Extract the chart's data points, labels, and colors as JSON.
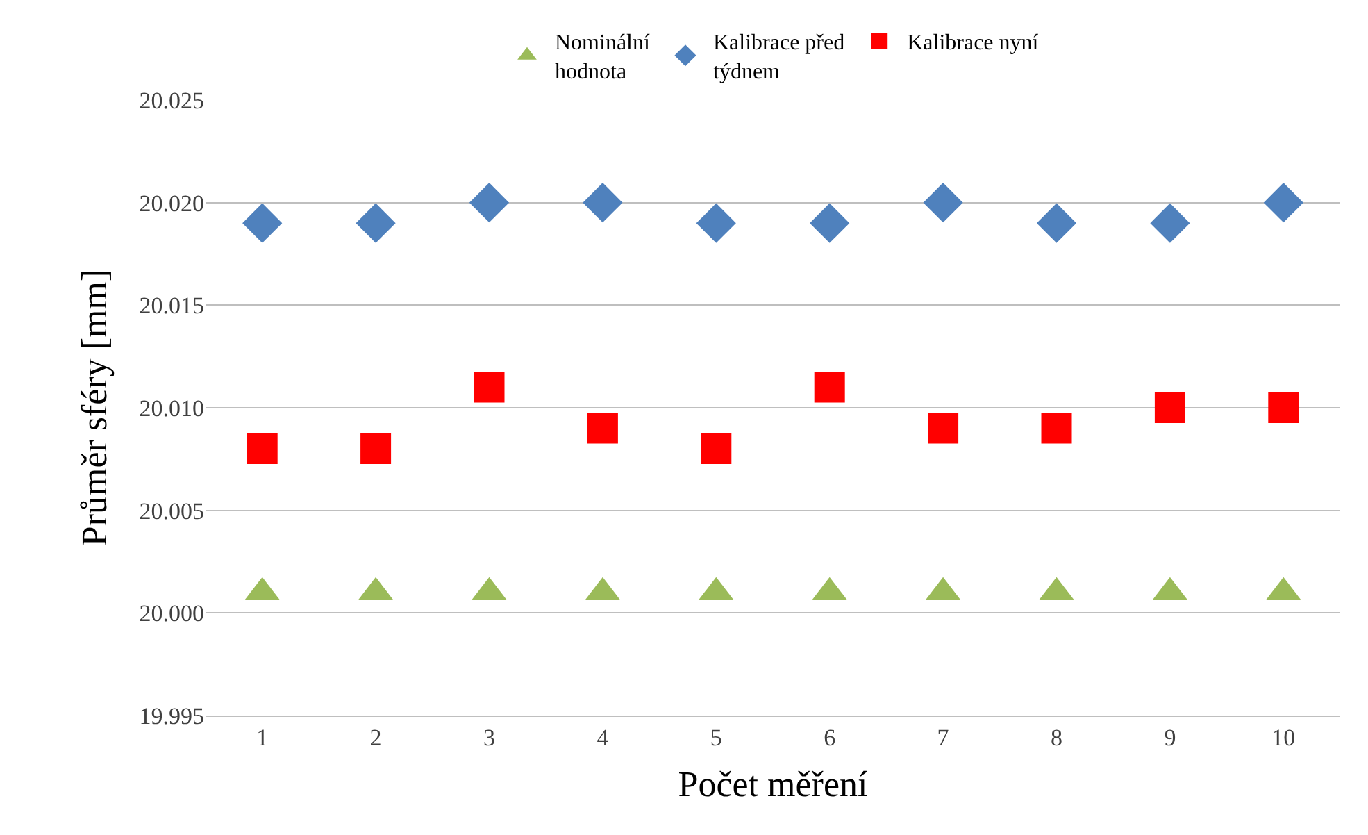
{
  "chart_data": {
    "type": "scatter",
    "xlabel": "Počet měření",
    "ylabel": "Průměr sféry [mm]",
    "categories": [
      "1",
      "2",
      "3",
      "4",
      "5",
      "6",
      "7",
      "8",
      "9",
      "10"
    ],
    "series": [
      {
        "name": "Nominální\nhodnota",
        "color": "#9bbb59",
        "marker": "triangle",
        "values": [
          20.001,
          20.001,
          20.001,
          20.001,
          20.001,
          20.001,
          20.001,
          20.001,
          20.001,
          20.001
        ]
      },
      {
        "name": "Kalibrace před\ntýdnem",
        "color": "#4f81bd",
        "marker": "diamond",
        "values": [
          20.019,
          20.019,
          20.02,
          20.02,
          20.019,
          20.019,
          20.02,
          20.019,
          20.019,
          20.02
        ]
      },
      {
        "name": "Kalibrace nyní",
        "color": "#ff0000",
        "marker": "square",
        "values": [
          20.008,
          20.008,
          20.011,
          20.009,
          20.008,
          20.011,
          20.009,
          20.009,
          20.01,
          20.01
        ]
      }
    ],
    "ylim": [
      19.995,
      20.025
    ],
    "yticks": [
      {
        "value": 19.995,
        "label": "19.995"
      },
      {
        "value": 20.0,
        "label": "20.000"
      },
      {
        "value": 20.005,
        "label": "20.005"
      },
      {
        "value": 20.01,
        "label": "20.010"
      },
      {
        "value": 20.015,
        "label": "20.015"
      },
      {
        "value": 20.02,
        "label": "20.020"
      },
      {
        "value": 20.025,
        "label": "20.025"
      }
    ],
    "grid": "y",
    "legend": "top"
  }
}
